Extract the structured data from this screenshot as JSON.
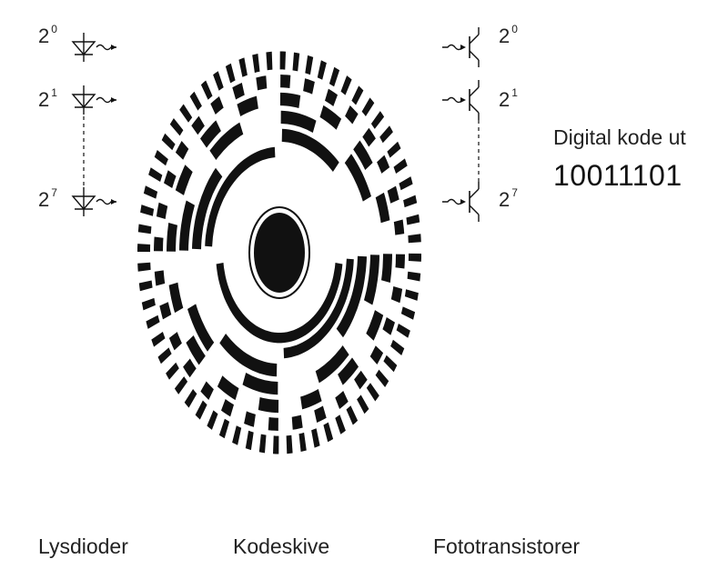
{
  "diagram": {
    "left_bits": [
      {
        "base": "2",
        "exp": "0"
      },
      {
        "base": "2",
        "exp": "1"
      },
      {
        "base": "2",
        "exp": "7"
      }
    ],
    "right_bits": [
      {
        "base": "2",
        "exp": "0"
      },
      {
        "base": "2",
        "exp": "1"
      },
      {
        "base": "2",
        "exp": "7"
      }
    ],
    "output_title": "Digital kode ut",
    "output_code": "10011101",
    "captions": {
      "leds": "Lysdioder",
      "disc": "Kodeskive",
      "transistors": "Fototransistorer"
    },
    "colors": {
      "ink": "#111111",
      "text": "#222222"
    }
  }
}
